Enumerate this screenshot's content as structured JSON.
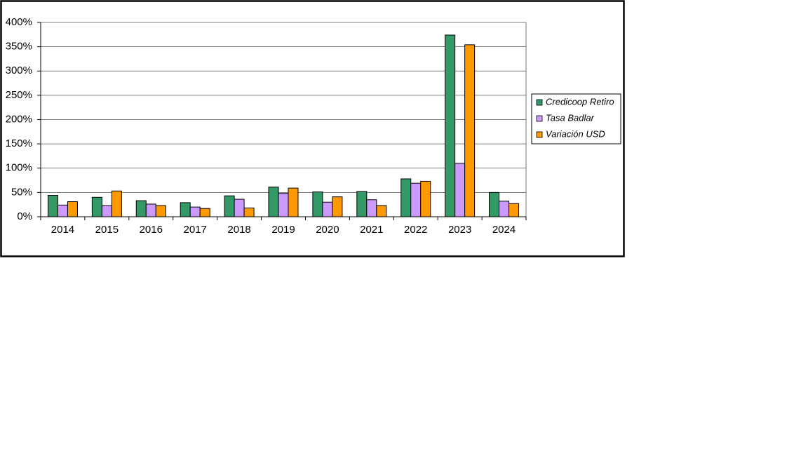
{
  "chart_data": {
    "type": "bar",
    "categories": [
      "2014",
      "2015",
      "2016",
      "2017",
      "2018",
      "2019",
      "2020",
      "2021",
      "2022",
      "2023",
      "2024"
    ],
    "series": [
      {
        "name": "Credicoop Retiro",
        "color": "#339966",
        "values": [
          44,
          40,
          33,
          29,
          43,
          61,
          51,
          52,
          78,
          374,
          50
        ]
      },
      {
        "name": "Tasa Badlar",
        "color": "#cc99ff",
        "values": [
          24,
          23,
          26,
          20,
          36,
          48,
          30,
          35,
          69,
          110,
          32
        ]
      },
      {
        "name": "Variación USD",
        "color": "#ff9900",
        "values": [
          31,
          53,
          23,
          17,
          18,
          59,
          41,
          23,
          73,
          354,
          27
        ]
      }
    ],
    "ylim": [
      0,
      400
    ],
    "yticks": [
      {
        "value": 0,
        "label": "0%"
      },
      {
        "value": 50,
        "label": "50%"
      },
      {
        "value": 100,
        "label": "100%"
      },
      {
        "value": 150,
        "label": "150%"
      },
      {
        "value": 200,
        "label": "200%"
      },
      {
        "value": 250,
        "label": "250%"
      },
      {
        "value": 300,
        "label": "300%"
      },
      {
        "value": 350,
        "label": "350%"
      },
      {
        "value": 400,
        "label": "400%"
      }
    ],
    "grid": true,
    "legend": "right"
  }
}
